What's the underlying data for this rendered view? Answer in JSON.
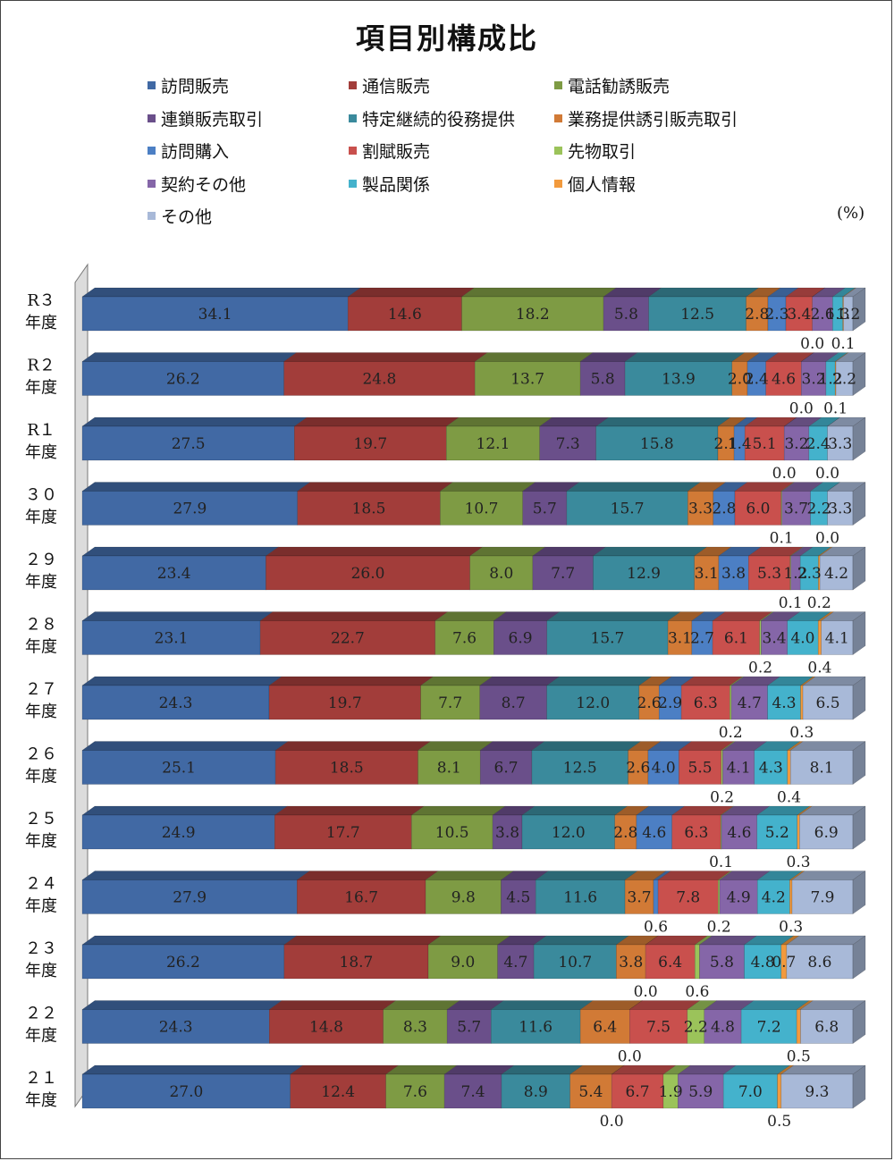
{
  "chart_data": {
    "type": "bar",
    "orientation": "horizontal",
    "stacked": "100%",
    "title": "項目別構成比",
    "unit": "(%)",
    "legend_position": "top",
    "grid": false,
    "categories": [
      [
        "R３",
        "年度"
      ],
      [
        "R２",
        "年度"
      ],
      [
        "R１",
        "年度"
      ],
      [
        "３０",
        "年度"
      ],
      [
        "２９",
        "年度"
      ],
      [
        "２８",
        "年度"
      ],
      [
        "２７",
        "年度"
      ],
      [
        "２６",
        "年度"
      ],
      [
        "２５",
        "年度"
      ],
      [
        "２４",
        "年度"
      ],
      [
        "２３",
        "年度"
      ],
      [
        "２２",
        "年度"
      ],
      [
        "２１",
        "年度"
      ]
    ],
    "series": [
      {
        "name": "訪問販売",
        "color": "#4169a4",
        "values": [
          34.1,
          26.2,
          27.5,
          27.9,
          23.4,
          23.1,
          24.3,
          25.1,
          24.9,
          27.9,
          26.2,
          24.3,
          27.0
        ]
      },
      {
        "name": "通信販売",
        "color": "#a23d3a",
        "values": [
          14.6,
          24.8,
          19.7,
          18.5,
          26.0,
          22.7,
          19.7,
          18.5,
          17.7,
          16.7,
          18.7,
          14.8,
          12.4
        ]
      },
      {
        "name": "電話勧誘販売",
        "color": "#7e9b44",
        "values": [
          18.2,
          13.7,
          12.1,
          10.7,
          8.0,
          7.6,
          7.7,
          8.1,
          10.5,
          9.8,
          9.0,
          8.3,
          7.6
        ]
      },
      {
        "name": "連鎖販売取引",
        "color": "#6a4f8a",
        "values": [
          5.8,
          5.8,
          7.3,
          5.7,
          7.7,
          6.9,
          8.7,
          6.7,
          3.8,
          4.5,
          4.7,
          5.7,
          7.4
        ]
      },
      {
        "name": "特定継続的役務提供",
        "color": "#3a8a9c",
        "values": [
          12.5,
          13.9,
          15.8,
          15.7,
          12.9,
          15.7,
          12.0,
          12.5,
          12.0,
          11.6,
          10.7,
          11.6,
          8.9
        ]
      },
      {
        "name": "業務提供誘引販売取引",
        "color": "#d17a36",
        "values": [
          2.8,
          2.0,
          2.1,
          3.3,
          3.1,
          3.1,
          2.6,
          2.6,
          2.8,
          3.7,
          3.8,
          6.4,
          5.4
        ]
      },
      {
        "name": "訪問購入",
        "color": "#4c7fc4",
        "values": [
          2.3,
          2.4,
          1.4,
          2.8,
          3.8,
          2.7,
          2.9,
          4.0,
          4.6,
          0.6,
          0.0,
          0.0,
          0.0
        ]
      },
      {
        "name": "割賦販売",
        "color": "#c9504d",
        "values": [
          3.4,
          4.6,
          5.1,
          6.0,
          5.3,
          6.1,
          6.3,
          5.5,
          6.3,
          7.8,
          6.4,
          7.5,
          6.7
        ]
      },
      {
        "name": "先物取引",
        "color": "#9bc35a",
        "values": [
          0.0,
          0.0,
          0.0,
          0.1,
          0.1,
          0.2,
          0.2,
          0.2,
          0.1,
          0.2,
          0.6,
          2.2,
          1.9
        ]
      },
      {
        "name": "契約その他",
        "color": "#8566a8",
        "values": [
          2.6,
          3.2,
          3.2,
          3.7,
          1.2,
          3.4,
          4.7,
          4.1,
          4.6,
          4.9,
          5.8,
          4.8,
          5.9
        ]
      },
      {
        "name": "製品関係",
        "color": "#44b2cc",
        "values": [
          1.3,
          1.2,
          2.4,
          2.2,
          2.3,
          4.0,
          4.3,
          4.3,
          5.2,
          4.2,
          4.8,
          7.2,
          7.0
        ]
      },
      {
        "name": "個人情報",
        "color": "#f29a3d",
        "values": [
          0.1,
          0.1,
          0.0,
          0.0,
          0.2,
          0.4,
          0.3,
          0.4,
          0.3,
          0.3,
          0.7,
          0.5,
          0.5
        ]
      },
      {
        "name": "その他",
        "color": "#a8b9d8",
        "values": [
          1.2,
          2.2,
          3.3,
          3.3,
          4.2,
          4.1,
          6.5,
          8.1,
          6.9,
          7.9,
          8.6,
          6.8,
          9.3
        ]
      }
    ]
  }
}
